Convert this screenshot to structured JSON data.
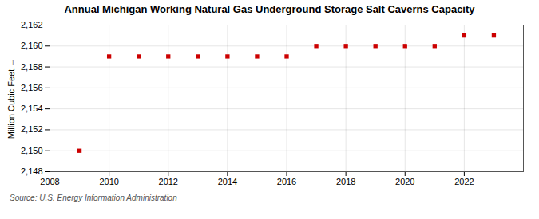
{
  "chart_data": {
    "type": "scatter",
    "title": "Annual Michigan Working Natural Gas Underground Storage Salt Caverns Capacity",
    "ylabel": "Million Cubic Feet",
    "source": "Source: U.S. Energy Information Administration",
    "x": [
      2009,
      2010,
      2011,
      2012,
      2013,
      2014,
      2015,
      2016,
      2017,
      2018,
      2019,
      2020,
      2021,
      2022,
      2023
    ],
    "values": [
      2150,
      2159,
      2159,
      2159,
      2159,
      2159,
      2159,
      2159,
      2160,
      2160,
      2160,
      2160,
      2160,
      2161,
      2161
    ],
    "color": "#cc0000",
    "marker": "square",
    "xlim": [
      2008,
      2024
    ],
    "xticks": [
      2008,
      2010,
      2012,
      2014,
      2016,
      2018,
      2020,
      2022
    ],
    "ylim": [
      2148,
      2162
    ],
    "yticks": [
      {
        "value": 2148,
        "label": "2,148"
      },
      {
        "value": 2150,
        "label": "2,150"
      },
      {
        "value": 2152,
        "label": "2,152"
      },
      {
        "value": 2154,
        "label": "2,154"
      },
      {
        "value": 2156,
        "label": "2,156"
      },
      {
        "value": 2158,
        "label": "2,158"
      },
      {
        "value": 2160,
        "label": "2,160"
      },
      {
        "value": 2162,
        "label": "2,162"
      }
    ],
    "grid": true
  }
}
